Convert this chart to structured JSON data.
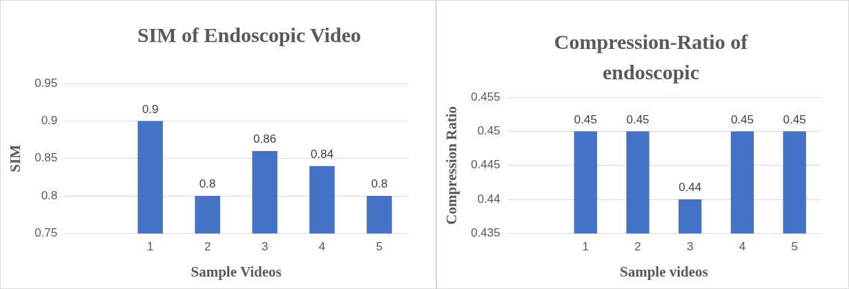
{
  "chart_data": [
    {
      "type": "bar",
      "title": "SIM of Endoscopic Video",
      "xlabel": "Sample Videos",
      "ylabel": "SIM",
      "categories": [
        null,
        "1",
        "2",
        "3",
        "4",
        "5"
      ],
      "values": [
        null,
        0.9,
        0.8,
        0.86,
        0.84,
        0.8
      ],
      "color": "#4472c4",
      "ylim": [
        0.75,
        0.95
      ],
      "yticks": [
        0.75,
        0.8,
        0.85,
        0.9,
        0.95
      ],
      "grid": "y",
      "data_labels": true
    },
    {
      "type": "bar",
      "title": "Compression-Ratio of endoscopic",
      "xlabel": "Sample videos",
      "ylabel": "Compression Ratio",
      "categories": [
        null,
        "1",
        "2",
        "3",
        "4",
        "5"
      ],
      "values": [
        null,
        0.45,
        0.45,
        0.44,
        0.45,
        0.45
      ],
      "color": "#4472c4",
      "ylim": [
        0.435,
        0.455
      ],
      "yticks": [
        0.435,
        0.44,
        0.445,
        0.45,
        0.455
      ],
      "grid": "y",
      "data_labels": true
    }
  ]
}
